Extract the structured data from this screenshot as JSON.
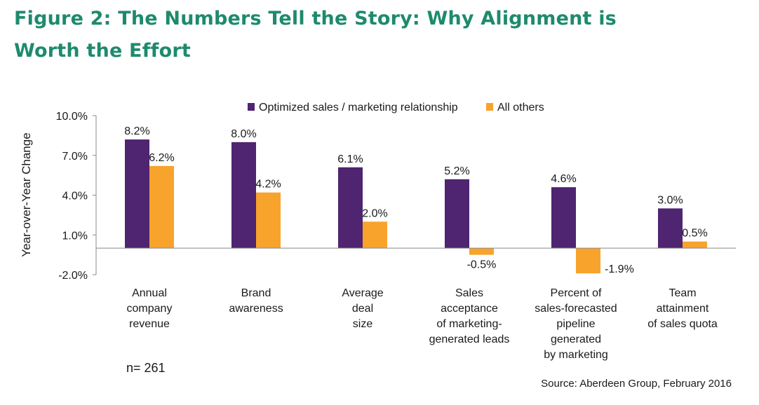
{
  "figure": {
    "title": "Figure 2: The Numbers Tell the Story: Why Alignment is Worth the Effort",
    "note": "n= 261",
    "source": "Source: Aberdeen Group, February 2016"
  },
  "colors": {
    "title": "#1e8a6d",
    "optimized": "#4f2470",
    "others": "#f8a32c"
  },
  "chart_data": {
    "type": "bar",
    "title": "",
    "xlabel": "",
    "ylabel": "Year-over-Year Change",
    "ylim": [
      -2.0,
      10.0
    ],
    "yticks": [
      -2.0,
      1.0,
      4.0,
      7.0,
      10.0
    ],
    "ytick_labels": [
      "-2.0%",
      "1.0%",
      "4.0%",
      "7.0%",
      "10.0%"
    ],
    "legend_position": "top",
    "grid": false,
    "categories": [
      [
        "Annual",
        "company",
        "revenue"
      ],
      [
        "Brand",
        "awareness"
      ],
      [
        "Average",
        "deal",
        "size"
      ],
      [
        "Sales",
        "acceptance",
        "of marketing-",
        "generated leads"
      ],
      [
        "Percent of",
        "sales-forecasted",
        "pipeline",
        "generated",
        "by marketing"
      ],
      [
        "Team",
        "attainment",
        "of sales quota"
      ]
    ],
    "series": [
      {
        "name": "Optimized sales / marketing relationship",
        "values": [
          8.2,
          8.0,
          6.1,
          5.2,
          4.6,
          3.0
        ],
        "labels": [
          "8.2%",
          "8.0%",
          "6.1%",
          "5.2%",
          "4.6%",
          "3.0%"
        ]
      },
      {
        "name": "All others",
        "values": [
          6.2,
          4.2,
          2.0,
          -0.5,
          -1.9,
          0.5
        ],
        "labels": [
          "6.2%",
          "4.2%",
          "2.0%",
          "-0.5%",
          "-1.9%",
          "0.5%"
        ]
      }
    ]
  }
}
